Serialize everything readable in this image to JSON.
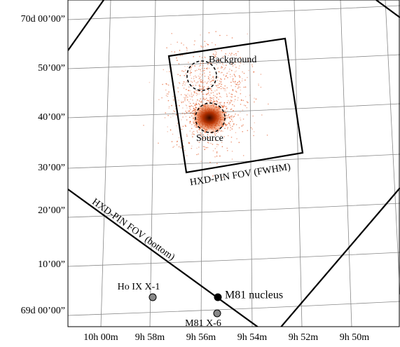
{
  "y_labels": [
    "70d 00’00”",
    "50’00”",
    "40’00”",
    "30’00”",
    "20’00”",
    "10’00”",
    "69d 00’00”"
  ],
  "x_labels": [
    "10h 00m",
    "9h 58m",
    "9h 56m",
    "9h 54m",
    "9h 52m",
    "9h 50m"
  ],
  "annotations": {
    "background": "Background",
    "source": "Source",
    "fov_fwhm": "HXD-PIN FOV (FWHM)",
    "fov_bottom": "HXD-PIN FOV (bottom)",
    "m81_nucleus": "M81 nucleus",
    "ho_ix": "Ho IX X-1",
    "m81_x6": "M81 X-6"
  }
}
